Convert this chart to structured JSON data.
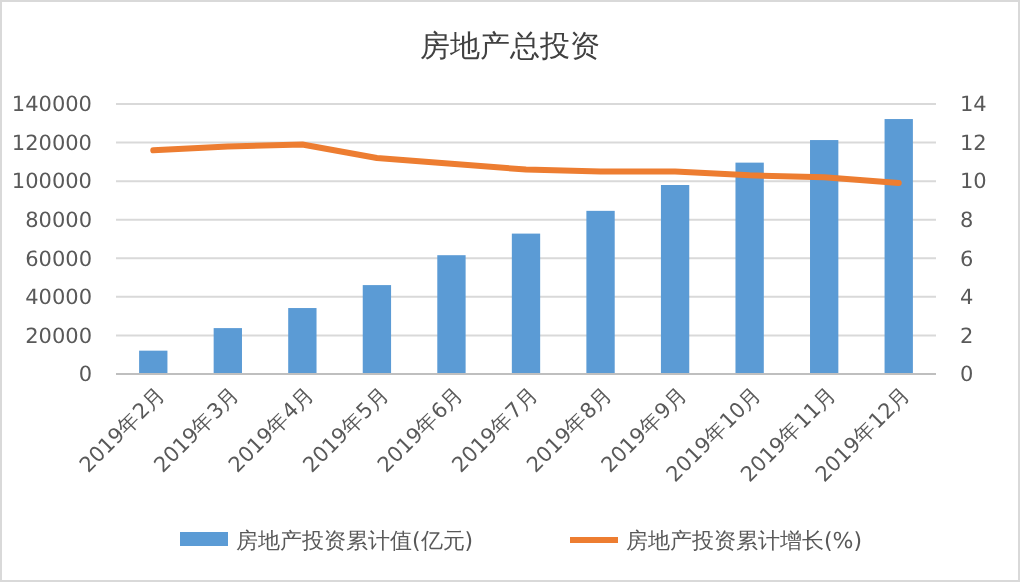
{
  "chart_data": {
    "type": "bar",
    "title": "房地产总投资",
    "categories": [
      "2019年2月",
      "2019年3月",
      "2019年4月",
      "2019年5月",
      "2019年6月",
      "2019年7月",
      "2019年8月",
      "2019年9月",
      "2019年10月",
      "2019年11月",
      "2019年12月"
    ],
    "series": [
      {
        "name": "房地产投资累计值(亿元)",
        "color": "#5b9bd5",
        "values": [
          12100,
          23800,
          34200,
          46100,
          61600,
          72800,
          84600,
          98000,
          109600,
          121300,
          132200
        ]
      },
      {
        "name": "房地产投资累计增长(%)",
        "type": "line",
        "axis": "y2",
        "color": "#ed7d31",
        "values": [
          11.6,
          11.8,
          11.9,
          11.2,
          10.9,
          10.6,
          10.5,
          10.5,
          10.3,
          10.2,
          9.9
        ]
      }
    ],
    "ylim": [
      0,
      140000
    ],
    "yticks": [
      0,
      20000,
      40000,
      60000,
      80000,
      100000,
      120000,
      140000
    ],
    "y2lim": [
      0,
      14
    ],
    "y2ticks": [
      0,
      2,
      4,
      6,
      8,
      10,
      12,
      14
    ],
    "grid": "y",
    "legend": "bottom",
    "marker": "none"
  }
}
